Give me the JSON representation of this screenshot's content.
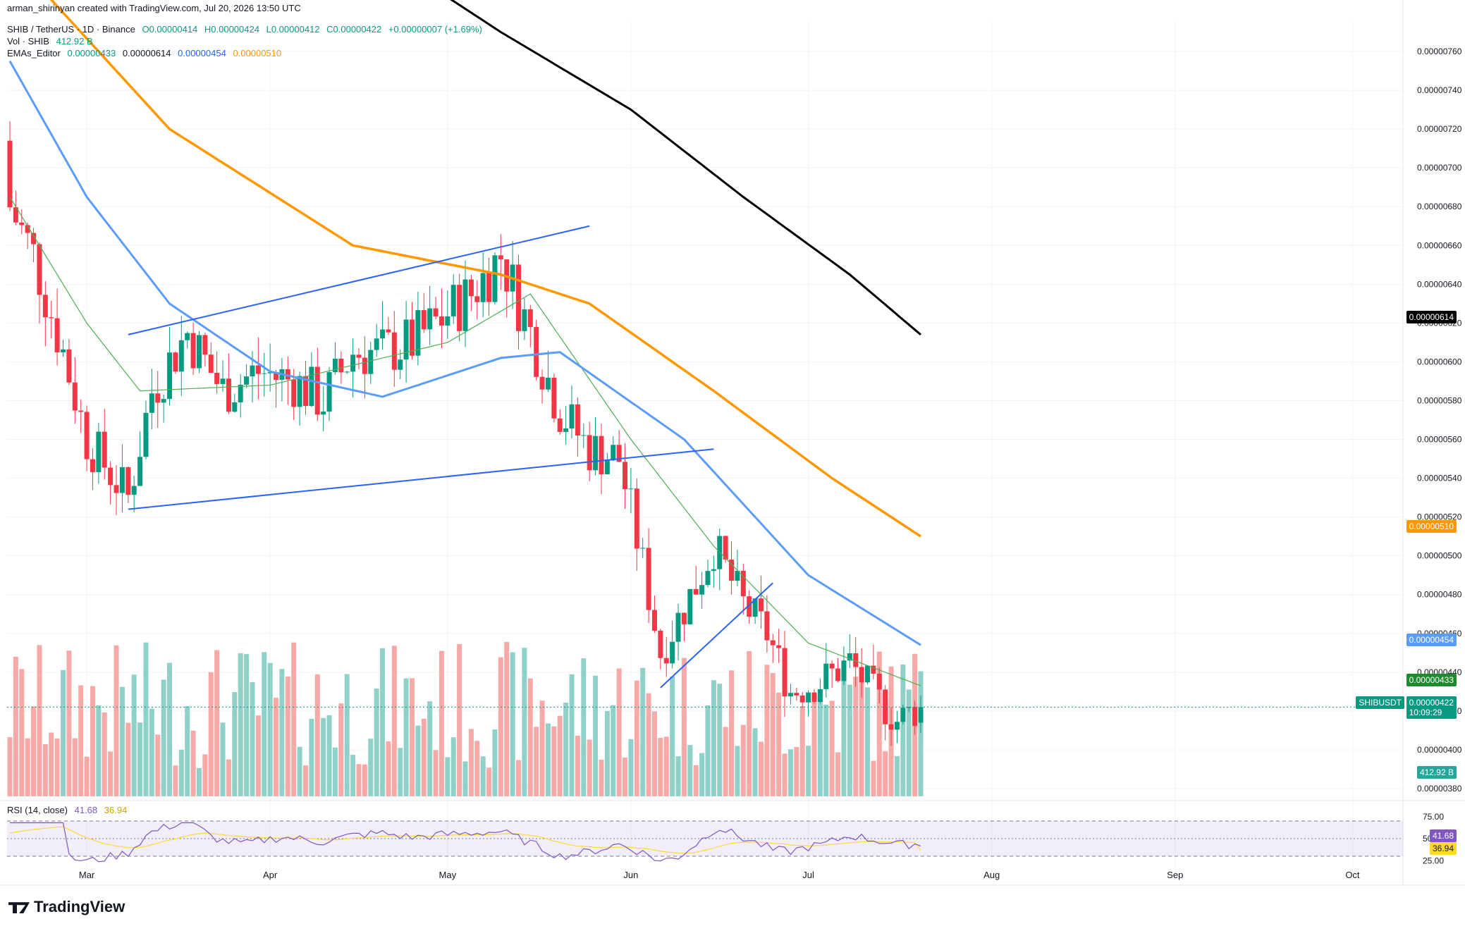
{
  "header": {
    "author_line": "arman_shirinyan created with TradingView.com, Jul 20, 2026 13:50 UTC",
    "symbol_line": "SHIB / TetherUS · 1D · Binance",
    "ohlc": {
      "o": "O0.00000414",
      "h": "H0.00000424",
      "l": "L0.00000412",
      "c": "C0.00000422",
      "chg": "+0.00000007 (+1.69%)"
    },
    "vol_line": "Vol · SHIB",
    "vol_value": "412.92 B",
    "ema_line": "EMAs_Editor",
    "ema_values": [
      "0.00000433",
      "0.00000614",
      "0.00000454",
      "0.00000510"
    ]
  },
  "price_tags": {
    "ema200": "0.00000614",
    "ema100": "0.00000510",
    "ema50": "0.00000454",
    "ema20": "0.00000433",
    "last": "0.00000422",
    "countdown": "10:09:29",
    "symbol": "SHIBUSDT",
    "volume": "412.92 B",
    "rsi": "41.68",
    "rsi_ma": "36.94"
  },
  "rsi_header": "RSI (14, close)",
  "rsi_values": [
    "41.68",
    "36.94"
  ],
  "rsi_axis": [
    "75.00",
    "50.00",
    "25.00"
  ],
  "watermark": "TradingView",
  "colors": {
    "up": "#089981",
    "down": "#f23645",
    "vol_up": "#8fd1c8",
    "vol_down": "#f7a9a7",
    "ema20": "#4caf50",
    "ema50": "#5b9cf6",
    "ema100": "#ff9800",
    "ema200": "#000000",
    "trendline": "#2962ff",
    "rsi": "#7e57c2",
    "rsi_ma": "#fdd835"
  },
  "chart_data": {
    "type": "candlestick",
    "y_ticks": [
      "0.00000760",
      "0.00000740",
      "0.00000720",
      "0.00000700",
      "0.00000680",
      "0.00000660",
      "0.00000640",
      "0.00000620",
      "0.00000600",
      "0.00000580",
      "0.00000560",
      "0.00000540",
      "0.00000520",
      "0.00000500",
      "0.00000480",
      "0.00000460",
      "0.00000440",
      "0.00000420",
      "0.00000400",
      "0.00000380"
    ],
    "ylim": [
      3.76e-06,
      7.72e-06
    ],
    "x_ticks": [
      {
        "label": "Mar",
        "date": "2026-03-01"
      },
      {
        "label": "Apr",
        "date": "2026-04-01"
      },
      {
        "label": "May",
        "date": "2026-05-01"
      },
      {
        "label": "Jun",
        "date": "2026-06-01"
      },
      {
        "label": "Jul",
        "date": "2026-07-01"
      },
      {
        "label": "Aug",
        "date": "2026-08-01"
      },
      {
        "label": "Sep",
        "date": "2026-09-01"
      },
      {
        "label": "Oct",
        "date": "2026-10-01"
      }
    ],
    "first_date": "2026-02-16",
    "last_date": "2026-07-20",
    "candles": [],
    "anchors_close": [
      [
        "2026-02-16",
        6.8
      ],
      [
        "2026-02-20",
        6.55
      ],
      [
        "2026-02-25",
        6.05
      ],
      [
        "2026-03-01",
        5.6
      ],
      [
        "2026-03-08",
        5.3
      ],
      [
        "2026-03-12",
        5.85
      ],
      [
        "2026-03-18",
        6.15
      ],
      [
        "2026-03-24",
        5.85
      ],
      [
        "2026-03-30",
        5.95
      ],
      [
        "2026-04-05",
        5.9
      ],
      [
        "2026-04-10",
        5.8
      ],
      [
        "2026-04-15",
        6.05
      ],
      [
        "2026-04-20",
        6.05
      ],
      [
        "2026-04-25",
        6.1
      ],
      [
        "2026-05-01",
        6.25
      ],
      [
        "2026-05-05",
        6.35
      ],
      [
        "2026-05-10",
        6.55
      ],
      [
        "2026-05-15",
        6.15
      ],
      [
        "2026-05-20",
        5.75
      ],
      [
        "2026-05-25",
        5.55
      ],
      [
        "2026-05-30",
        5.5
      ],
      [
        "2026-06-03",
        4.95
      ],
      [
        "2026-06-06",
        4.5
      ],
      [
        "2026-06-12",
        4.85
      ],
      [
        "2026-06-15",
        5.05
      ],
      [
        "2026-06-20",
        4.75
      ],
      [
        "2026-06-24",
        4.6
      ],
      [
        "2026-06-28",
        4.3
      ],
      [
        "2026-07-03",
        4.35
      ],
      [
        "2026-07-08",
        4.45
      ],
      [
        "2026-07-13",
        4.25
      ],
      [
        "2026-07-16",
        4.15
      ],
      [
        "2026-07-20",
        4.22
      ]
    ],
    "ema_anchors": {
      "ema20": [
        [
          "2026-02-16",
          6.85
        ],
        [
          "2026-03-01",
          6.2
        ],
        [
          "2026-03-10",
          5.85
        ],
        [
          "2026-04-01",
          5.88
        ],
        [
          "2026-05-01",
          6.1
        ],
        [
          "2026-05-15",
          6.35
        ],
        [
          "2026-06-01",
          5.6
        ],
        [
          "2026-06-15",
          5.05
        ],
        [
          "2026-07-01",
          4.55
        ],
        [
          "2026-07-20",
          4.33
        ]
      ],
      "ema50": [
        [
          "2026-02-16",
          7.55
        ],
        [
          "2026-03-01",
          6.85
        ],
        [
          "2026-03-15",
          6.3
        ],
        [
          "2026-04-01",
          5.95
        ],
        [
          "2026-04-20",
          5.82
        ],
        [
          "2026-05-10",
          6.02
        ],
        [
          "2026-05-20",
          6.05
        ],
        [
          "2026-06-10",
          5.6
        ],
        [
          "2026-07-01",
          4.9
        ],
        [
          "2026-07-20",
          4.54
        ]
      ],
      "ema100": [
        [
          "2026-02-16",
          8.1
        ],
        [
          "2026-03-15",
          7.2
        ],
        [
          "2026-04-15",
          6.6
        ],
        [
          "2026-05-10",
          6.45
        ],
        [
          "2026-05-25",
          6.3
        ],
        [
          "2026-06-15",
          5.85
        ],
        [
          "2026-07-05",
          5.4
        ],
        [
          "2026-07-20",
          5.1
        ]
      ],
      "ema200": [
        [
          "2026-04-20",
          8.1
        ],
        [
          "2026-05-10",
          7.7
        ],
        [
          "2026-06-01",
          7.3
        ],
        [
          "2026-06-20",
          6.85
        ],
        [
          "2026-07-08",
          6.45
        ],
        [
          "2026-07-20",
          6.14
        ]
      ]
    },
    "trendlines": [
      [
        [
          "2026-03-08",
          6.14
        ],
        [
          "2026-05-25",
          6.7
        ]
      ],
      [
        [
          "2026-03-08",
          5.24
        ],
        [
          "2026-06-15",
          5.55
        ]
      ],
      [
        [
          "2026-06-06",
          4.32
        ],
        [
          "2026-06-25",
          4.86
        ]
      ]
    ],
    "rsi": {
      "last": 41.68,
      "ma_last": 36.94,
      "levels": [
        70,
        50,
        30
      ]
    }
  }
}
